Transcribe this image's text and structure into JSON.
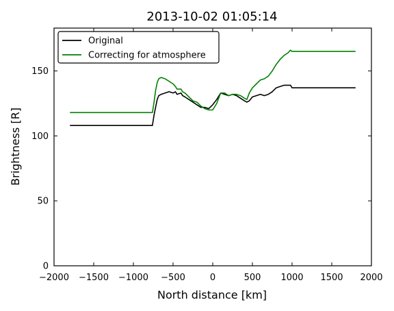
{
  "chart_data": {
    "type": "line",
    "title": "2013-10-02 01:05:14",
    "xlabel": "North distance [km]",
    "ylabel": "Brightness [R]",
    "xlim": [
      -2000,
      2000
    ],
    "ylim": [
      0,
      183
    ],
    "xticks": [
      -2000,
      -1500,
      -1000,
      -500,
      0,
      500,
      1000,
      1500,
      2000
    ],
    "xtick_labels": [
      "−2000",
      "−1500",
      "−1000",
      "−500",
      "0",
      "500",
      "1000",
      "1500",
      "2000"
    ],
    "yticks": [
      0,
      50,
      100,
      150
    ],
    "ytick_labels": [
      "0",
      "50",
      "100",
      "150"
    ],
    "grid": false,
    "legend_position": "top-left",
    "series": [
      {
        "name": "Original",
        "color": "#000000",
        "x": [
          -1800,
          -760,
          -740,
          -720,
          -700,
          -680,
          -650,
          -600,
          -550,
          -500,
          -470,
          -450,
          -400,
          -380,
          -350,
          -300,
          -250,
          -200,
          -150,
          -100,
          -50,
          0,
          50,
          100,
          150,
          200,
          250,
          300,
          350,
          400,
          430,
          460,
          500,
          550,
          600,
          650,
          700,
          750,
          800,
          850,
          900,
          950,
          980,
          1000,
          1100,
          1800
        ],
        "values": [
          108,
          108,
          116,
          122,
          128,
          131,
          132,
          133,
          134,
          133,
          134,
          132,
          133,
          131,
          130,
          128,
          126,
          124,
          122,
          122,
          121,
          124,
          128,
          133,
          132,
          131,
          132,
          131,
          129,
          127,
          126,
          127,
          130,
          131,
          132,
          131,
          132,
          134,
          137,
          138,
          139,
          139,
          139,
          137,
          137,
          137
        ]
      },
      {
        "name": "Correcting for atmosphere",
        "color": "#008000",
        "x": [
          -1800,
          -760,
          -740,
          -720,
          -700,
          -680,
          -650,
          -600,
          -550,
          -500,
          -470,
          -450,
          -400,
          -380,
          -350,
          -300,
          -250,
          -200,
          -150,
          -100,
          -50,
          0,
          50,
          100,
          150,
          200,
          250,
          300,
          350,
          400,
          430,
          460,
          500,
          550,
          600,
          650,
          700,
          750,
          800,
          850,
          900,
          950,
          980,
          1000,
          1100,
          1800
        ],
        "values": [
          118,
          118,
          126,
          135,
          141,
          144,
          145,
          144,
          142,
          140,
          138,
          136,
          136,
          134,
          133,
          130,
          127,
          126,
          123,
          121,
          120,
          120,
          125,
          133,
          133,
          131,
          132,
          132,
          131,
          129,
          128,
          133,
          137,
          140,
          143,
          144,
          146,
          150,
          155,
          159,
          162,
          164,
          166,
          165,
          165,
          165
        ]
      }
    ]
  }
}
